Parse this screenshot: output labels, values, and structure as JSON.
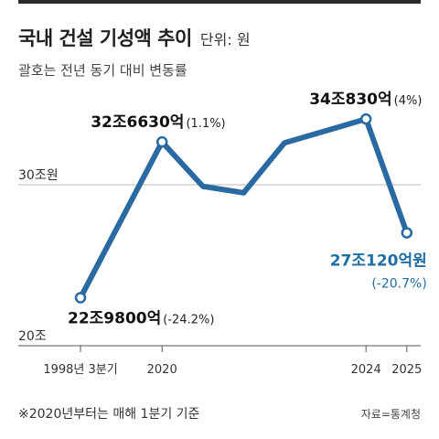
{
  "header": {
    "title": "국내 건설 기성액 추이",
    "unit": "단위: 원",
    "subtitle": "괄호는 전년 동기 대비 변동률"
  },
  "footer": {
    "note": "※2020년부터는 매해 1분기 기준",
    "source": "자료=통계청"
  },
  "colors": {
    "line": "#2a6aa3",
    "highlight": "#1f6ea3",
    "axis": "#555555",
    "grid": "#bbbbbb"
  },
  "chart_data": {
    "type": "line",
    "title": "국내 건설 기성액 추이",
    "xlabel": "",
    "ylabel": "",
    "ylim": [
      20,
      38
    ],
    "y_ticks": [
      {
        "value": 20,
        "label": "20조"
      },
      {
        "value": 30,
        "label": "30조원"
      }
    ],
    "x_ticks": [
      {
        "index": 0,
        "label": "1998년 3분기"
      },
      {
        "index": 2,
        "label": "2020"
      },
      {
        "index": 7,
        "label": "2024"
      },
      {
        "index": 8,
        "label": "2025"
      }
    ],
    "series": [
      {
        "values": [
          22.98,
          32.66,
          29.9,
          29.5,
          32.6,
          34.083,
          27.012
        ]
      }
    ],
    "points_index": [
      0,
      2,
      3,
      4,
      5,
      7,
      8
    ],
    "annotations": [
      {
        "index": 0,
        "value_label": "22조9800억",
        "change": "(-24.2%)"
      },
      {
        "index": 2,
        "value_label": "32조6630억",
        "change": "(1.1%)"
      },
      {
        "index": 7,
        "value_label": "34조830억",
        "change": "(4%)"
      },
      {
        "index": 8,
        "value_label": "27조120억원",
        "change": "(-20.7%)"
      }
    ]
  }
}
